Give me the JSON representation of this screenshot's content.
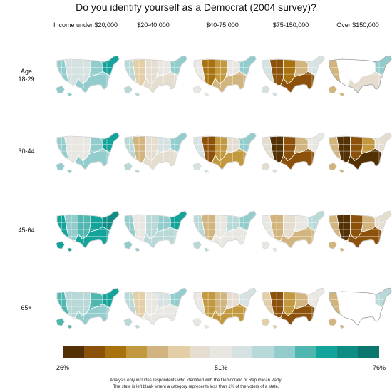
{
  "title": "Do you identify yourself as a Democrat (2004 survey)?",
  "columns": [
    "Income under $20,000",
    "$20-40,000",
    "$40-75,000",
    "$75-150,000",
    "Over $150,000"
  ],
  "rows": [
    {
      "label_line1": "Age",
      "label_line2": "18-29"
    },
    {
      "label_line1": "30-44",
      "label_line2": ""
    },
    {
      "label_line1": "45-64",
      "label_line2": ""
    },
    {
      "label_line1": "65+",
      "label_line2": ""
    }
  ],
  "legend": {
    "min_label": "26%",
    "mid_label": "51%",
    "max_label": "76%",
    "scale": [
      26,
      76
    ],
    "colors": [
      "#543005",
      "#8c510a",
      "#a8720f",
      "#c2993f",
      "#d2b57e",
      "#e2cfa8",
      "#e5ddd0",
      "#e9e7e2",
      "#d5e2e1",
      "#b9d9d9",
      "#93cccc",
      "#4fb7b0",
      "#14a39a",
      "#0f8d84",
      "#0a766e"
    ]
  },
  "footnote": {
    "line1": "Analysis only includes respondents who identified with the Democratic or Republican Party.",
    "line2": "The state is left blank where a category represents less than 1% of the voters of a state."
  },
  "chart_data": {
    "type": "choropleth-small-multiples",
    "value_unit": "percent identifying as Democrat",
    "color_range": [
      26,
      76
    ],
    "row_dimension": "Age",
    "column_dimension": "Income",
    "panels": [
      {
        "row": "18-29",
        "col": "Income under $20,000",
        "west": 62,
        "mountain": 55,
        "plains": 54,
        "south": 62,
        "midwest": 60,
        "northeast": 68,
        "blank": false
      },
      {
        "row": "18-29",
        "col": "$20-40,000",
        "west": 58,
        "mountain": 44,
        "plains": 46,
        "south": 46,
        "midwest": 52,
        "northeast": 60,
        "blank": false
      },
      {
        "row": "18-29",
        "col": "$40-75,000",
        "west": 52,
        "mountain": 35,
        "plains": 38,
        "south": 42,
        "midwest": 50,
        "northeast": 62,
        "blank": false
      },
      {
        "row": "18-29",
        "col": "$75-150,000",
        "west": 54,
        "mountain": 30,
        "plains": 34,
        "south": 30,
        "midwest": 40,
        "northeast": 55,
        "blank": false
      },
      {
        "row": "18-29",
        "col": "Over $150,000",
        "west": 40,
        "mountain": null,
        "plains": null,
        "south": 46,
        "midwest": null,
        "northeast": 60,
        "blank": true
      },
      {
        "row": "30-44",
        "col": "Income under $20,000",
        "west": 60,
        "mountain": 50,
        "plains": 52,
        "south": 60,
        "midwest": 62,
        "northeast": 68,
        "blank": false
      },
      {
        "row": "30-44",
        "col": "$20-40,000",
        "west": 58,
        "mountain": 40,
        "plains": 48,
        "south": 48,
        "midwest": 54,
        "northeast": 60,
        "blank": false
      },
      {
        "row": "30-44",
        "col": "$40-75,000",
        "west": 54,
        "mountain": 32,
        "plains": 38,
        "south": 36,
        "midwest": 46,
        "northeast": 62,
        "blank": false
      },
      {
        "row": "30-44",
        "col": "$75-150,000",
        "west": 48,
        "mountain": 28,
        "plains": 32,
        "south": 30,
        "midwest": 40,
        "northeast": 52,
        "blank": false
      },
      {
        "row": "30-44",
        "col": "Over $150,000",
        "west": 40,
        "mountain": 27,
        "plains": 30,
        "south": 28,
        "midwest": 36,
        "northeast": 46,
        "blank": false
      },
      {
        "row": "45-64",
        "col": "Income under $20,000",
        "west": 66,
        "mountain": 62,
        "plains": 64,
        "south": 66,
        "midwest": 68,
        "northeast": 72,
        "blank": false
      },
      {
        "row": "45-64",
        "col": "$20-40,000",
        "west": 62,
        "mountain": 50,
        "plains": 58,
        "south": 58,
        "midwest": 62,
        "northeast": 66,
        "blank": false
      },
      {
        "row": "45-64",
        "col": "$40-75,000",
        "west": 56,
        "mountain": 42,
        "plains": 52,
        "south": 50,
        "midwest": 56,
        "northeast": 62,
        "blank": false
      },
      {
        "row": "45-64",
        "col": "$75-150,000",
        "west": 52,
        "mountain": 40,
        "plains": 48,
        "south": 40,
        "midwest": 50,
        "northeast": 56,
        "blank": false
      },
      {
        "row": "45-64",
        "col": "Over $150,000",
        "west": 40,
        "mountain": 28,
        "plains": 32,
        "south": 30,
        "midwest": 40,
        "northeast": 48,
        "blank": false
      },
      {
        "row": "65+",
        "col": "Income under $20,000",
        "west": 64,
        "mountain": 56,
        "plains": 58,
        "south": 62,
        "midwest": 64,
        "northeast": 68,
        "blank": false
      },
      {
        "row": "65+",
        "col": "$20-40,000",
        "west": 56,
        "mountain": 44,
        "plains": 50,
        "south": 50,
        "midwest": 54,
        "northeast": 60,
        "blank": false
      },
      {
        "row": "65+",
        "col": "$40-75,000",
        "west": 50,
        "mountain": 36,
        "plains": 40,
        "south": 38,
        "midwest": 46,
        "northeast": 54,
        "blank": false
      },
      {
        "row": "65+",
        "col": "$75-150,000",
        "west": 44,
        "mountain": 32,
        "plains": 36,
        "south": 30,
        "midwest": 40,
        "northeast": 50,
        "blank": false
      },
      {
        "row": "65+",
        "col": "Over $150,000",
        "west": 42,
        "mountain": null,
        "plains": null,
        "south": null,
        "midwest": null,
        "northeast": 58,
        "blank": true
      }
    ]
  }
}
